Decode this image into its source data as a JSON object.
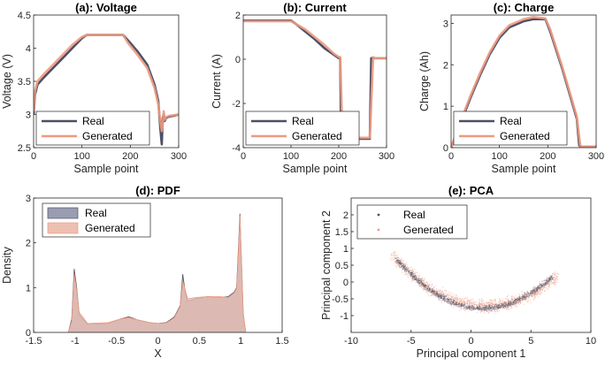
{
  "colors": {
    "real": "#4d4f66",
    "generated": "#ee9a80",
    "real_fill": "#9a9db0",
    "generated_fill": "#edbfb0"
  },
  "chart_data": [
    {
      "type": "line",
      "title": "(a): Voltage",
      "xlabel": "Sample point",
      "ylabel": "Voltage (V)",
      "xlim": [
        0,
        300
      ],
      "ylim": [
        2.5,
        4.5
      ],
      "xticks": [
        0,
        100,
        200,
        300
      ],
      "yticks": [
        2.5,
        3,
        3.5,
        4,
        4.5
      ],
      "legend": [
        "Real",
        "Generated"
      ],
      "legend_location": "bottom-left",
      "series": [
        {
          "name": "Real",
          "x": [
            0,
            3,
            8,
            20,
            40,
            60,
            80,
            100,
            110,
            150,
            185,
            195,
            215,
            235,
            250,
            258,
            262,
            265,
            267,
            269,
            271,
            274,
            280,
            290,
            300
          ],
          "y": [
            3.0,
            3.3,
            3.45,
            3.55,
            3.7,
            3.85,
            4.0,
            4.15,
            4.2,
            4.2,
            4.2,
            4.12,
            3.95,
            3.75,
            3.45,
            3.2,
            2.8,
            2.55,
            2.95,
            3.0,
            2.9,
            2.95,
            2.97,
            2.98,
            3.0
          ]
        },
        {
          "name": "Generated",
          "x": [
            0,
            3,
            8,
            20,
            40,
            60,
            80,
            100,
            110,
            150,
            185,
            195,
            215,
            235,
            250,
            258,
            262,
            265,
            267,
            269,
            271,
            274,
            280,
            290,
            300
          ],
          "y": [
            3.05,
            3.35,
            3.5,
            3.6,
            3.75,
            3.9,
            4.05,
            4.17,
            4.2,
            4.2,
            4.2,
            4.08,
            3.9,
            3.7,
            3.4,
            3.15,
            2.9,
            2.75,
            2.85,
            3.05,
            2.92,
            2.96,
            2.98,
            2.99,
            3.0
          ]
        }
      ]
    },
    {
      "type": "line",
      "title": "(b): Current",
      "xlabel": "Sample point",
      "ylabel": "Current (A)",
      "xlim": [
        0,
        300
      ],
      "ylim": [
        -4,
        2
      ],
      "xticks": [
        0,
        100,
        200,
        300
      ],
      "yticks": [
        -4,
        -2,
        0,
        2
      ],
      "legend": [
        "Real",
        "Generated"
      ],
      "legend_location": "bottom-left",
      "series": [
        {
          "name": "Real",
          "x": [
            0,
            100,
            110,
            130,
            150,
            170,
            190,
            200,
            203,
            205,
            265,
            268,
            270,
            300
          ],
          "y": [
            1.75,
            1.75,
            1.6,
            1.25,
            0.9,
            0.5,
            0.2,
            0.05,
            0.05,
            -3.6,
            -3.6,
            0.05,
            0.05,
            0.05
          ]
        },
        {
          "name": "Generated",
          "x": [
            0,
            100,
            110,
            130,
            150,
            170,
            190,
            200,
            203,
            208,
            265,
            272,
            275,
            300
          ],
          "y": [
            1.72,
            1.72,
            1.6,
            1.35,
            1.0,
            0.65,
            0.25,
            0.1,
            0.1,
            -3.55,
            -3.55,
            0.1,
            0.05,
            0.05
          ]
        }
      ]
    },
    {
      "type": "line",
      "title": "(c): Charge",
      "xlabel": "Sample point",
      "ylabel": "Charge (Ah)",
      "xlim": [
        0,
        300
      ],
      "ylim": [
        0,
        3.2
      ],
      "xticks": [
        0,
        100,
        200,
        300
      ],
      "yticks": [
        0,
        1,
        2,
        3
      ],
      "legend": [
        "Real",
        "Generated"
      ],
      "legend_location": "bottom-left",
      "series": [
        {
          "name": "Real",
          "x": [
            0,
            15,
            40,
            60,
            80,
            100,
            120,
            150,
            170,
            195,
            205,
            230,
            260,
            265,
            270,
            300
          ],
          "y": [
            0,
            0.45,
            1.2,
            1.75,
            2.25,
            2.65,
            2.9,
            3.05,
            3.1,
            3.1,
            2.8,
            1.9,
            0.7,
            0.05,
            0.02,
            0.02
          ]
        },
        {
          "name": "Generated",
          "x": [
            0,
            15,
            40,
            60,
            80,
            100,
            120,
            150,
            170,
            195,
            205,
            230,
            260,
            267,
            272,
            300
          ],
          "y": [
            0,
            0.5,
            1.25,
            1.8,
            2.3,
            2.7,
            2.95,
            3.1,
            3.15,
            3.12,
            2.85,
            1.95,
            0.75,
            0.05,
            0.02,
            0.02
          ]
        }
      ]
    },
    {
      "type": "area",
      "title": "(d): PDF",
      "xlabel": "X",
      "ylabel": "Density",
      "xlim": [
        -1.5,
        1.5
      ],
      "ylim": [
        0,
        3
      ],
      "xticks": [
        -1.5,
        -1,
        -0.5,
        0,
        0.5,
        1,
        1.5
      ],
      "yticks": [
        0,
        1,
        2,
        3
      ],
      "legend": [
        "Real",
        "Generated"
      ],
      "legend_location": "top-left",
      "series": [
        {
          "name": "Real",
          "x": [
            -1.08,
            -1.04,
            -1.01,
            -0.98,
            -0.95,
            -0.85,
            -0.6,
            -0.45,
            -0.35,
            -0.25,
            -0.1,
            0.0,
            0.1,
            0.2,
            0.27,
            0.3,
            0.33,
            0.36,
            0.45,
            0.6,
            0.75,
            0.85,
            0.92,
            0.95,
            0.97,
            0.99,
            1.01,
            1.03,
            1.06
          ],
          "y": [
            0,
            0.3,
            1.42,
            1.0,
            0.4,
            0.18,
            0.2,
            0.3,
            0.35,
            0.28,
            0.22,
            0.2,
            0.22,
            0.35,
            0.6,
            1.3,
            0.9,
            0.7,
            0.75,
            0.8,
            0.78,
            0.8,
            0.9,
            1.0,
            1.8,
            2.65,
            1.5,
            0.4,
            0
          ]
        },
        {
          "name": "Generated",
          "x": [
            -1.08,
            -1.04,
            -1.01,
            -0.98,
            -0.95,
            -0.85,
            -0.6,
            -0.45,
            -0.35,
            -0.25,
            -0.1,
            0.0,
            0.1,
            0.2,
            0.27,
            0.3,
            0.33,
            0.36,
            0.45,
            0.6,
            0.75,
            0.85,
            0.92,
            0.95,
            0.97,
            0.99,
            1.01,
            1.03,
            1.06
          ],
          "y": [
            0,
            0.25,
            1.3,
            0.95,
            0.45,
            0.2,
            0.22,
            0.3,
            0.33,
            0.28,
            0.22,
            0.2,
            0.21,
            0.33,
            0.58,
            1.15,
            0.95,
            0.75,
            0.78,
            0.8,
            0.8,
            0.78,
            0.88,
            0.98,
            1.7,
            2.6,
            1.6,
            0.45,
            0
          ]
        }
      ]
    },
    {
      "type": "scatter",
      "title": "(e): PCA",
      "xlabel": "Principal component 1",
      "ylabel": "Principal component 2",
      "xlim": [
        -10,
        10
      ],
      "ylim": [
        -1.5,
        2.5
      ],
      "xticks": [
        -10,
        -5,
        0,
        5,
        10
      ],
      "yticks": [
        -1,
        -0.5,
        0,
        0.5,
        1,
        1.5,
        2
      ],
      "legend": [
        "Real",
        "Generated"
      ],
      "legend_location": "top-left",
      "series": [
        {
          "name": "Real",
          "curve": "parabola",
          "vertex": [
            1.0,
            -0.78
          ],
          "a": 0.028,
          "x_range": [
            -6.2,
            6.8
          ],
          "spread": 0.12,
          "count": 1400
        },
        {
          "name": "Generated",
          "curve": "parabola",
          "vertex": [
            1.2,
            -0.72
          ],
          "a": 0.025,
          "x_range": [
            -6.6,
            7.2
          ],
          "spread": 0.26,
          "count": 1600
        }
      ]
    }
  ]
}
